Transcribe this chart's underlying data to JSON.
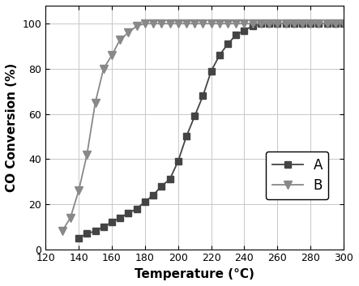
{
  "series_A": {
    "x": [
      140,
      145,
      150,
      155,
      160,
      165,
      170,
      175,
      180,
      185,
      190,
      195,
      200,
      205,
      210,
      215,
      220,
      225,
      230,
      235,
      240,
      245,
      250,
      255,
      260,
      265,
      270,
      275,
      280,
      285,
      290,
      295,
      300
    ],
    "y": [
      5,
      7,
      8,
      10,
      12,
      14,
      16,
      18,
      21,
      24,
      28,
      31,
      39,
      50,
      59,
      68,
      79,
      86,
      91,
      95,
      97,
      99,
      100,
      100,
      100,
      100,
      100,
      100,
      100,
      100,
      100,
      100,
      100
    ],
    "color": "#444444",
    "marker": "s",
    "label": "A",
    "markersize": 5.5
  },
  "series_B": {
    "x": [
      130,
      135,
      140,
      145,
      150,
      155,
      160,
      165,
      170,
      175,
      180,
      185,
      190,
      195,
      200,
      205,
      210,
      215,
      220,
      225,
      230,
      235,
      240,
      245,
      250,
      255,
      260,
      265,
      270,
      275,
      280,
      285,
      290,
      295,
      300
    ],
    "y": [
      8,
      14,
      26,
      42,
      65,
      80,
      86,
      93,
      96,
      99,
      100,
      100,
      100,
      100,
      100,
      100,
      100,
      100,
      100,
      100,
      100,
      100,
      100,
      100,
      100,
      100,
      100,
      100,
      100,
      100,
      100,
      100,
      100,
      100,
      100
    ],
    "color": "#888888",
    "marker": "v",
    "label": "B",
    "markersize": 7
  },
  "xlabel": "Temperature (°C)",
  "ylabel": "CO Conversion (%)",
  "xlim": [
    120,
    300
  ],
  "ylim": [
    0,
    108
  ],
  "yticks": [
    0,
    20,
    40,
    60,
    80,
    100
  ],
  "xticks": [
    120,
    140,
    160,
    180,
    200,
    220,
    240,
    260,
    280,
    300
  ],
  "grid_color": "#c8c8c8",
  "background_color": "#ffffff"
}
